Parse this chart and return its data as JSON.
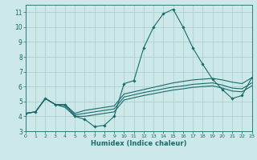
{
  "title": "",
  "xlabel": "Humidex (Indice chaleur)",
  "bg_color": "#cce8e8",
  "grid_color": "#aacccc",
  "line_color": "#1a6b6b",
  "xlim": [
    0,
    23
  ],
  "ylim": [
    3,
    11.5
  ],
  "xticks": [
    0,
    1,
    2,
    3,
    4,
    5,
    6,
    7,
    8,
    9,
    10,
    11,
    12,
    13,
    14,
    15,
    16,
    17,
    18,
    19,
    20,
    21,
    22,
    23
  ],
  "yticks": [
    3,
    4,
    5,
    6,
    7,
    8,
    9,
    10,
    11
  ],
  "curve1": [
    4.2,
    4.3,
    5.2,
    4.8,
    4.8,
    4.0,
    3.8,
    3.3,
    3.4,
    4.0,
    6.2,
    6.4,
    8.6,
    10.0,
    10.9,
    11.2,
    10.0,
    8.6,
    7.5,
    6.5,
    5.8,
    5.2,
    5.4,
    6.6
  ],
  "curve2": [
    4.2,
    4.3,
    5.2,
    4.8,
    4.8,
    4.2,
    4.4,
    4.5,
    4.6,
    4.7,
    5.5,
    5.65,
    5.8,
    5.95,
    6.1,
    6.25,
    6.35,
    6.45,
    6.5,
    6.55,
    6.45,
    6.3,
    6.2,
    6.6
  ],
  "curve3": [
    4.2,
    4.3,
    5.2,
    4.8,
    4.7,
    4.1,
    4.2,
    4.3,
    4.4,
    4.5,
    5.3,
    5.45,
    5.6,
    5.72,
    5.85,
    5.97,
    6.05,
    6.15,
    6.2,
    6.25,
    6.1,
    5.9,
    5.85,
    6.25
  ],
  "curve4": [
    4.2,
    4.3,
    5.2,
    4.8,
    4.6,
    4.0,
    4.0,
    4.1,
    4.2,
    4.3,
    5.1,
    5.25,
    5.4,
    5.52,
    5.65,
    5.77,
    5.85,
    5.95,
    6.0,
    6.05,
    5.9,
    5.7,
    5.65,
    6.05
  ]
}
